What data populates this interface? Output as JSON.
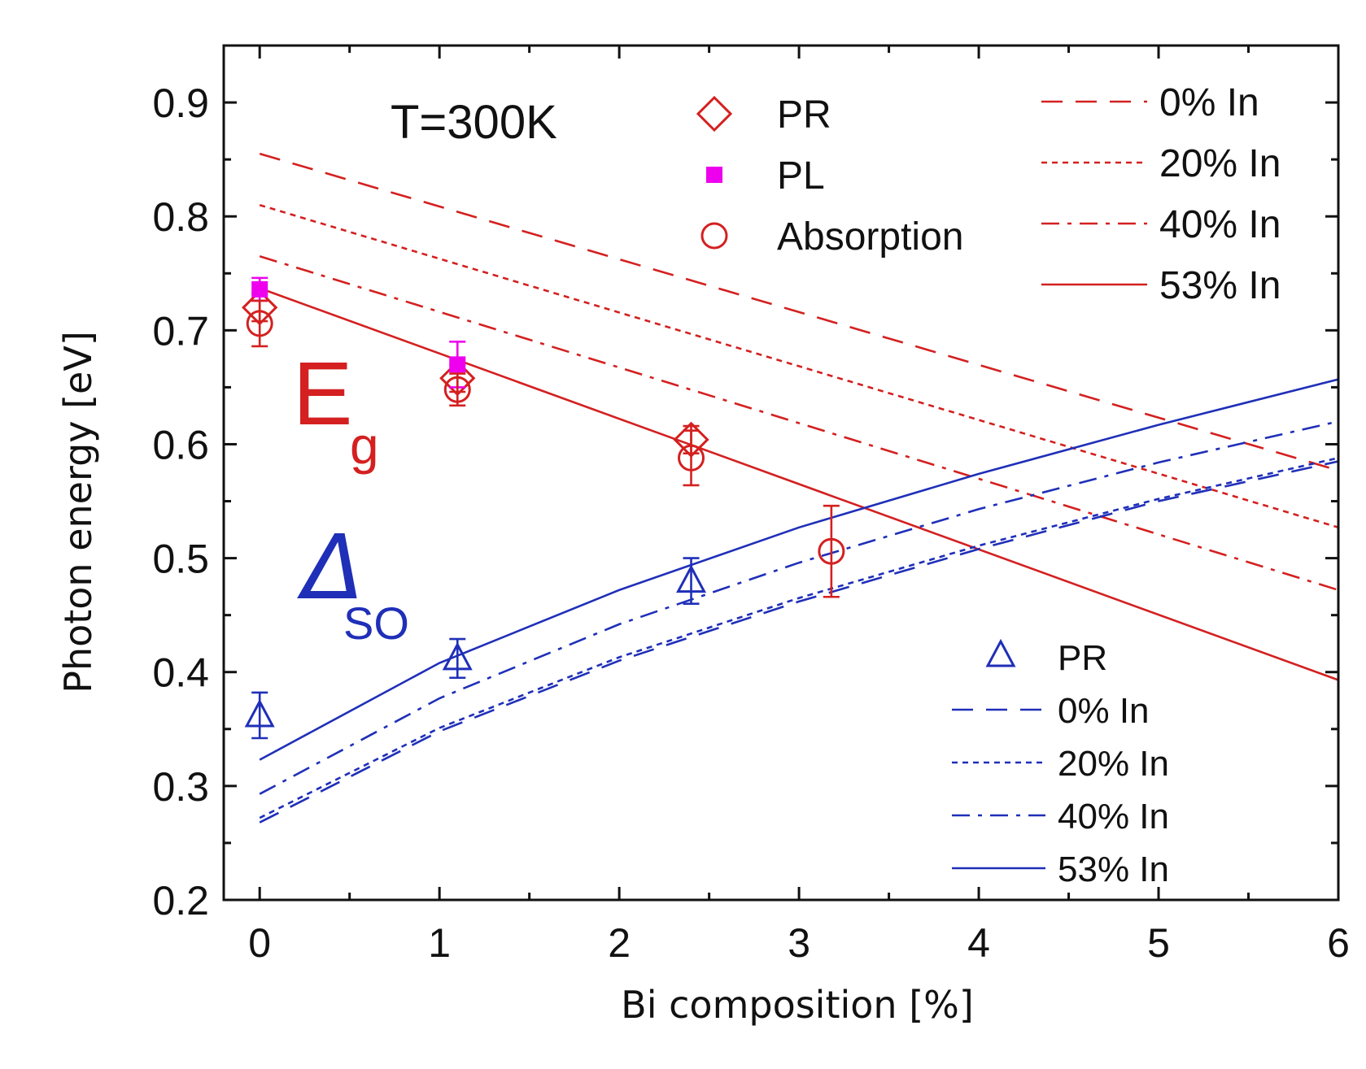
{
  "chart_data": {
    "type": "line",
    "title": "",
    "xlabel": "Bi composition [%]",
    "ylabel": "Photon energy [eV]",
    "xlim": [
      -0.2,
      6
    ],
    "ylim": [
      0.2,
      0.95
    ],
    "x_ticks": [
      0,
      1,
      2,
      3,
      4,
      5,
      6
    ],
    "x_tick_labels": [
      "0",
      "1",
      "2",
      "3",
      "4",
      "5",
      "6"
    ],
    "y_ticks": [
      0.2,
      0.3,
      0.4,
      0.5,
      0.6,
      0.7,
      0.8,
      0.9
    ],
    "y_tick_labels": [
      "0.2",
      "0.3",
      "0.4",
      "0.5",
      "0.6",
      "0.7",
      "0.8",
      "0.9"
    ],
    "annotations": {
      "temperature": "T=300K",
      "eg_main": "E",
      "eg_sub": "g",
      "so_main": "Δ",
      "so_sub": "SO"
    },
    "colors": {
      "eg": "#d42020",
      "so": "#1f2fb8",
      "pl": "#ee00ee"
    },
    "legend_eg_markers": [
      {
        "marker": "diamond",
        "label": "PR"
      },
      {
        "marker": "square",
        "label": "PL"
      },
      {
        "marker": "circle",
        "label": "Absorption"
      }
    ],
    "legend_eg_lines": [
      {
        "dash": "dashed",
        "label": "0% In"
      },
      {
        "dash": "dotted",
        "label": "20% In"
      },
      {
        "dash": "dashdot",
        "label": "40% In"
      },
      {
        "dash": "solid",
        "label": "53% In"
      }
    ],
    "legend_so": [
      {
        "marker": "triangle",
        "label": "PR"
      },
      {
        "dash": "dashed",
        "label": "0% In"
      },
      {
        "dash": "dotted",
        "label": "20% In"
      },
      {
        "dash": "dashdot",
        "label": "40% In"
      },
      {
        "dash": "solid",
        "label": "53% In"
      }
    ],
    "series_lines": [
      {
        "name": "Eg 0% In",
        "group": "eg",
        "dash": "dashed",
        "x": [
          0,
          6
        ],
        "y": [
          0.855,
          0.577
        ]
      },
      {
        "name": "Eg 20% In",
        "group": "eg",
        "dash": "dotted",
        "x": [
          0,
          6
        ],
        "y": [
          0.81,
          0.527
        ]
      },
      {
        "name": "Eg 40% In",
        "group": "eg",
        "dash": "dashdot",
        "x": [
          0,
          6
        ],
        "y": [
          0.765,
          0.472
        ]
      },
      {
        "name": "Eg 53% In",
        "group": "eg",
        "dash": "solid",
        "x": [
          0,
          6
        ],
        "y": [
          0.737,
          0.393
        ]
      },
      {
        "name": "SO 0% In",
        "group": "so",
        "dash": "dashed",
        "x": [
          0,
          1,
          2,
          3,
          4,
          5,
          6
        ],
        "y": [
          0.268,
          0.348,
          0.41,
          0.462,
          0.508,
          0.55,
          0.585
        ]
      },
      {
        "name": "SO 20% In",
        "group": "so",
        "dash": "dotted",
        "x": [
          0,
          1,
          2,
          3,
          4,
          5,
          6
        ],
        "y": [
          0.272,
          0.351,
          0.413,
          0.465,
          0.511,
          0.552,
          0.588
        ]
      },
      {
        "name": "SO 40% In",
        "group": "so",
        "dash": "dashdot",
        "x": [
          0,
          1,
          2,
          3,
          4,
          5,
          6
        ],
        "y": [
          0.293,
          0.377,
          0.442,
          0.496,
          0.543,
          0.584,
          0.62
        ]
      },
      {
        "name": "SO 53% In",
        "group": "so",
        "dash": "solid",
        "x": [
          0,
          1,
          2,
          3,
          4,
          5,
          6
        ],
        "y": [
          0.323,
          0.408,
          0.472,
          0.527,
          0.574,
          0.617,
          0.657
        ]
      }
    ],
    "series_points": [
      {
        "name": "Eg PR",
        "marker": "diamond",
        "group": "eg",
        "points": [
          {
            "x": 0.0,
            "y": 0.72,
            "err": 0.012
          },
          {
            "x": 1.1,
            "y": 0.658,
            "err": 0.012
          },
          {
            "x": 2.4,
            "y": 0.604,
            "err": 0.012
          }
        ]
      },
      {
        "name": "Eg PL",
        "marker": "square",
        "group": "pl",
        "points": [
          {
            "x": 0.0,
            "y": 0.736,
            "err": 0.01
          },
          {
            "x": 1.1,
            "y": 0.67,
            "err": 0.02
          }
        ]
      },
      {
        "name": "Eg Absorption",
        "marker": "circle",
        "group": "eg",
        "points": [
          {
            "x": 0.0,
            "y": 0.706,
            "err": 0.02
          },
          {
            "x": 1.1,
            "y": 0.648,
            "err": 0.014
          },
          {
            "x": 2.4,
            "y": 0.588,
            "err": 0.024
          },
          {
            "x": 3.18,
            "y": 0.506,
            "err": 0.04
          }
        ]
      },
      {
        "name": "SO PR",
        "marker": "triangle",
        "group": "so",
        "points": [
          {
            "x": 0.0,
            "y": 0.362,
            "err": 0.02
          },
          {
            "x": 1.1,
            "y": 0.412,
            "err": 0.017
          },
          {
            "x": 2.4,
            "y": 0.48,
            "err": 0.02
          }
        ]
      }
    ]
  }
}
